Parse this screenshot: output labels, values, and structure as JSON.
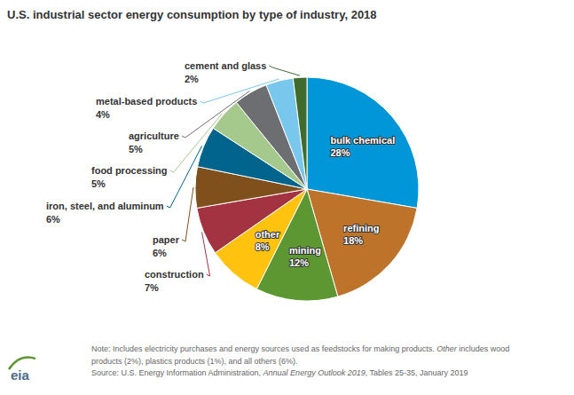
{
  "chart_data": {
    "type": "pie",
    "title": "U.S. industrial sector energy consumption by type of industry, 2018",
    "categories": [
      "bulk chemical",
      "refining",
      "mining",
      "other",
      "construction",
      "paper",
      "iron, steel, and aluminum",
      "food processing",
      "agriculture",
      "metal-based products",
      "cement and glass"
    ],
    "values": [
      28,
      18,
      12,
      8,
      7,
      6,
      6,
      5,
      5,
      4,
      2
    ],
    "value_labels": [
      "28%",
      "18%",
      "12%",
      "8%",
      "7%",
      "6%",
      "6%",
      "5%",
      "5%",
      "4%",
      "2%"
    ],
    "colors": [
      "#0096d7",
      "#bd732a",
      "#5d9732",
      "#ffc20e",
      "#a33340",
      "#7f4f1c",
      "#00648c",
      "#a5c98d",
      "#6d6e71",
      "#79c7ec",
      "#3f6c2c"
    ],
    "data_labels": true,
    "note": [
      [
        "Note: Includes electricity purchases and energy sources used as feedstocks for making products. ",
        "Other",
        " includes wood"
      ],
      [
        "products (2%), plastics products (1%), and all others (6%)."
      ],
      [
        "Source: U.S. Energy Information Administration, ",
        "Annual Energy Outlook 2019",
        ", Tables 25-35, January 2019"
      ]
    ],
    "logo": "eia"
  }
}
